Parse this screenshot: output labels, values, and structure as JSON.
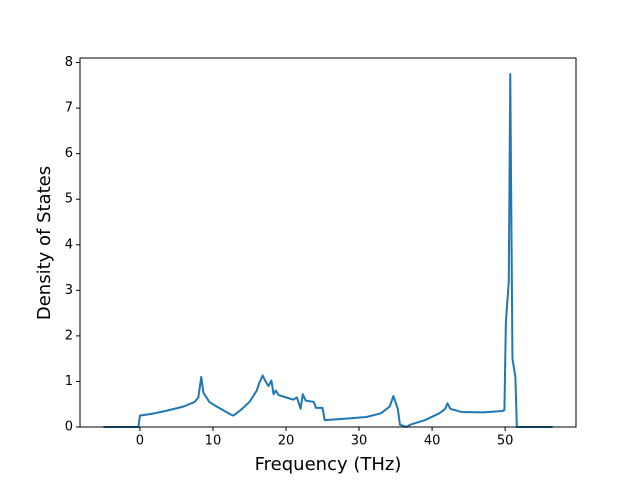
{
  "chart_data": {
    "type": "line",
    "xlabel": "Frequency (THz)",
    "ylabel": "Density of States",
    "color": "#1f77b4",
    "x": [
      -5,
      -0.2,
      0,
      2,
      4,
      6,
      7.5,
      8,
      8.4,
      8.7,
      9.5,
      10.5,
      12.5,
      12.8,
      14,
      15,
      16,
      16.3,
      16.8,
      17.2,
      17.6,
      18.0,
      18.3,
      18.6,
      19,
      20,
      21,
      21.5,
      22,
      22.3,
      22.7,
      23.8,
      24.1,
      25,
      25.3,
      28,
      31,
      33,
      34.2,
      34.7,
      35.3,
      35.6,
      36.5,
      37,
      39,
      41,
      41.8,
      42.1,
      42.5,
      44,
      47,
      49.6,
      49.9,
      50.1,
      50.5,
      50.7,
      51.0,
      51.4,
      51.6,
      56.5
    ],
    "values": [
      0,
      0,
      0.25,
      0.3,
      0.37,
      0.45,
      0.55,
      0.65,
      1.1,
      0.75,
      0.55,
      0.45,
      0.27,
      0.25,
      0.4,
      0.55,
      0.8,
      0.95,
      1.13,
      1.0,
      0.9,
      1.02,
      0.72,
      0.8,
      0.7,
      0.65,
      0.6,
      0.65,
      0.4,
      0.72,
      0.58,
      0.55,
      0.42,
      0.42,
      0.15,
      0.18,
      0.22,
      0.3,
      0.45,
      0.68,
      0.4,
      0.05,
      0,
      0.05,
      0.15,
      0.3,
      0.4,
      0.52,
      0.4,
      0.33,
      0.32,
      0.35,
      0.37,
      2.3,
      3.2,
      7.75,
      1.5,
      1.1,
      0,
      0
    ],
    "xlim": [
      -8.2,
      59.7
    ],
    "ylim": [
      0,
      8.1
    ],
    "xticks": [
      0,
      10,
      20,
      30,
      40,
      50
    ],
    "yticks": [
      0,
      1,
      2,
      3,
      4,
      5,
      6,
      7,
      8
    ]
  }
}
